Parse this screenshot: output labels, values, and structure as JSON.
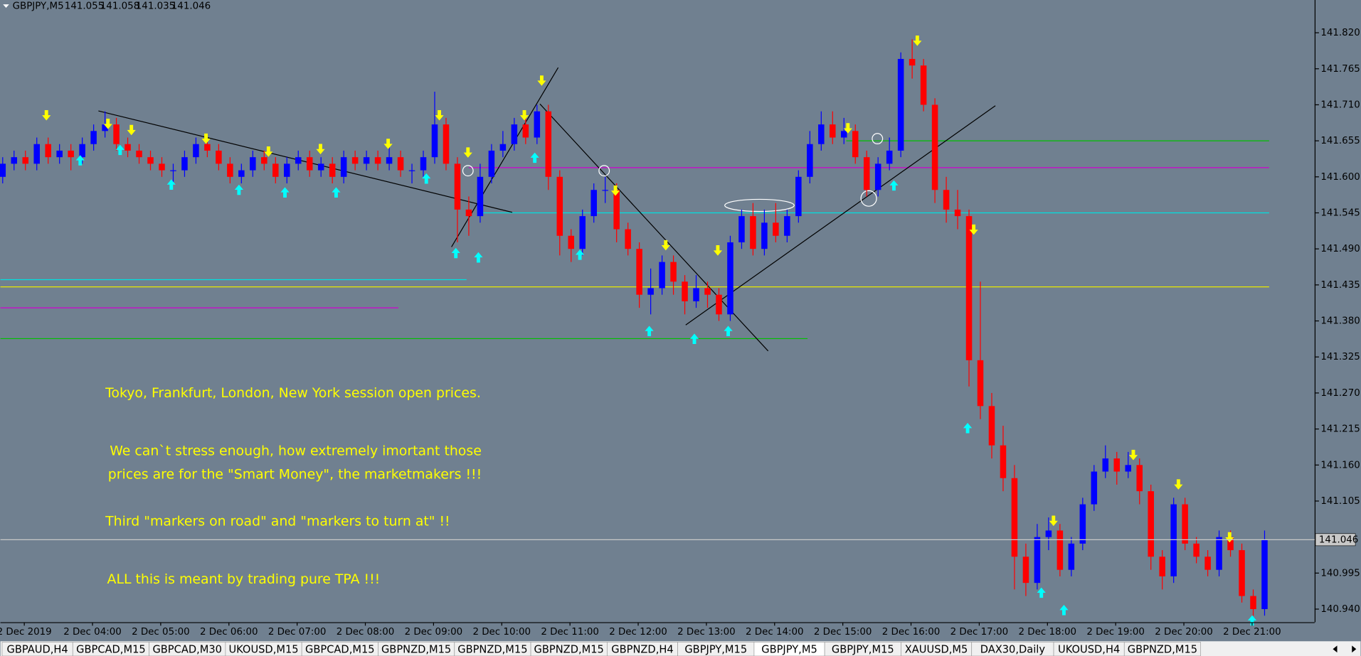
{
  "header": {
    "symbol": "GBPJPY,M5",
    "quote": [
      141.055,
      141.058,
      141.035,
      141.046
    ]
  },
  "chart_data": {
    "type": "candlestick",
    "up_color": "#0000ff",
    "down_color": "#ff0000",
    "open": [
      141.6,
      141.62,
      141.63,
      141.62,
      141.65,
      141.63,
      141.64,
      141.63,
      141.65,
      141.67,
      141.68,
      141.65,
      141.64,
      141.63,
      141.62,
      141.61,
      141.61,
      141.63,
      141.65,
      141.64,
      141.62,
      141.6,
      141.61,
      141.63,
      141.62,
      141.6,
      141.62,
      141.63,
      141.61,
      141.62,
      141.6,
      141.63,
      141.62,
      141.63,
      141.62,
      141.63,
      141.61,
      141.61,
      141.63,
      141.68,
      141.62,
      141.55,
      141.54,
      141.6,
      141.64,
      141.65,
      141.68,
      141.66,
      141.7,
      141.6,
      141.51,
      141.49,
      141.54,
      141.58,
      141.58,
      141.52,
      141.49,
      141.42,
      141.43,
      141.47,
      141.44,
      141.41,
      141.43,
      141.42,
      141.39,
      141.5,
      141.54,
      141.49,
      141.53,
      141.51,
      141.54,
      141.6,
      141.65,
      141.68,
      141.66,
      141.67,
      141.63,
      141.58,
      141.62,
      141.64,
      141.78,
      141.77,
      141.71,
      141.58,
      141.55,
      141.54,
      141.32,
      141.25,
      141.19,
      141.14,
      141.02,
      140.98,
      141.05,
      141.06,
      141.0,
      141.04,
      141.1,
      141.15,
      141.17,
      141.15,
      141.16,
      141.12,
      141.02,
      140.99,
      141.1,
      141.04,
      141.02,
      141.0,
      141.05,
      141.03,
      140.96,
      140.94
    ],
    "high": [
      141.63,
      141.64,
      141.64,
      141.66,
      141.66,
      141.65,
      141.65,
      141.66,
      141.68,
      141.7,
      141.69,
      141.66,
      141.65,
      141.64,
      141.63,
      141.62,
      141.64,
      141.66,
      141.66,
      141.65,
      141.63,
      141.62,
      141.64,
      141.64,
      141.63,
      141.63,
      141.64,
      141.64,
      141.63,
      141.63,
      141.64,
      141.64,
      141.64,
      141.64,
      141.65,
      141.64,
      141.62,
      141.64,
      141.73,
      141.69,
      141.63,
      141.57,
      141.62,
      141.65,
      141.67,
      141.69,
      141.7,
      141.71,
      141.71,
      141.61,
      141.52,
      141.55,
      141.59,
      141.6,
      141.59,
      141.53,
      141.5,
      141.46,
      141.48,
      141.48,
      141.45,
      141.45,
      141.44,
      141.43,
      141.51,
      141.55,
      141.56,
      141.55,
      141.56,
      141.55,
      141.61,
      141.67,
      141.7,
      141.7,
      141.69,
      141.68,
      141.64,
      141.63,
      141.66,
      141.79,
      141.81,
      141.78,
      141.72,
      141.6,
      141.58,
      141.55,
      141.44,
      141.27,
      141.22,
      141.16,
      141.04,
      141.07,
      141.08,
      141.07,
      141.05,
      141.11,
      141.16,
      141.19,
      141.18,
      141.18,
      141.17,
      141.13,
      141.03,
      141.11,
      141.11,
      141.05,
      141.03,
      141.06,
      141.06,
      141.04,
      140.97,
      141.06
    ],
    "low": [
      141.59,
      141.61,
      141.61,
      141.61,
      141.62,
      141.62,
      141.61,
      141.62,
      141.64,
      141.66,
      141.64,
      141.63,
      141.62,
      141.61,
      141.6,
      141.59,
      141.6,
      141.62,
      141.63,
      141.61,
      141.59,
      141.59,
      141.6,
      141.61,
      141.59,
      141.59,
      141.61,
      141.6,
      141.6,
      141.59,
      141.59,
      141.61,
      141.61,
      141.61,
      141.61,
      141.6,
      141.59,
      141.6,
      141.62,
      141.61,
      141.5,
      141.51,
      141.53,
      141.59,
      141.63,
      141.64,
      141.65,
      141.65,
      141.58,
      141.48,
      141.47,
      141.48,
      141.53,
      141.56,
      141.5,
      141.48,
      141.4,
      141.39,
      141.42,
      141.42,
      141.39,
      141.4,
      141.4,
      141.38,
      141.38,
      141.49,
      141.48,
      141.48,
      141.5,
      141.5,
      141.53,
      141.59,
      141.64,
      141.65,
      141.65,
      141.62,
      141.57,
      141.57,
      141.61,
      141.63,
      141.75,
      141.7,
      141.56,
      141.53,
      141.52,
      141.28,
      141.23,
      141.17,
      141.12,
      140.97,
      140.96,
      140.97,
      141.03,
      140.99,
      140.99,
      141.03,
      141.09,
      141.14,
      141.13,
      141.14,
      141.1,
      141.0,
      140.97,
      140.98,
      141.03,
      141.01,
      140.99,
      140.99,
      141.02,
      140.95,
      140.93,
      140.93
    ],
    "close": [
      141.62,
      141.63,
      141.62,
      141.65,
      141.63,
      141.64,
      141.63,
      141.65,
      141.67,
      141.68,
      141.65,
      141.64,
      141.63,
      141.62,
      141.61,
      141.61,
      141.63,
      141.65,
      141.64,
      141.62,
      141.6,
      141.61,
      141.63,
      141.62,
      141.6,
      141.62,
      141.63,
      141.61,
      141.62,
      141.6,
      141.63,
      141.62,
      141.63,
      141.62,
      141.63,
      141.61,
      141.61,
      141.63,
      141.68,
      141.62,
      141.55,
      141.54,
      141.6,
      141.64,
      141.65,
      141.68,
      141.66,
      141.7,
      141.6,
      141.51,
      141.49,
      141.54,
      141.58,
      141.58,
      141.52,
      141.49,
      141.42,
      141.43,
      141.47,
      141.44,
      141.41,
      141.43,
      141.42,
      141.39,
      141.5,
      141.54,
      141.49,
      141.53,
      141.51,
      141.54,
      141.6,
      141.65,
      141.68,
      141.66,
      141.67,
      141.63,
      141.58,
      141.62,
      141.64,
      141.78,
      141.77,
      141.71,
      141.58,
      141.55,
      141.54,
      141.32,
      141.25,
      141.19,
      141.14,
      141.02,
      140.98,
      141.05,
      141.06,
      141.0,
      141.04,
      141.1,
      141.15,
      141.17,
      141.15,
      141.16,
      141.12,
      141.02,
      140.99,
      141.1,
      141.04,
      141.02,
      141.0,
      141.05,
      141.03,
      140.96,
      140.94,
      141.046
    ],
    "xlim": [
      -0.2,
      115.4
    ],
    "ylim": [
      140.92,
      141.87
    ],
    "xticks": [
      {
        "value": 1.9,
        "label": "2 Dec 2019"
      },
      {
        "value": 7.9,
        "label": "2 Dec 04:00"
      },
      {
        "value": 13.9,
        "label": "2 Dec 05:00"
      },
      {
        "value": 19.9,
        "label": "2 Dec 06:00"
      },
      {
        "value": 25.9,
        "label": "2 Dec 07:00"
      },
      {
        "value": 31.9,
        "label": "2 Dec 08:00"
      },
      {
        "value": 37.9,
        "label": "2 Dec 09:00"
      },
      {
        "value": 43.9,
        "label": "2 Dec 10:00"
      },
      {
        "value": 49.9,
        "label": "2 Dec 11:00"
      },
      {
        "value": 55.9,
        "label": "2 Dec 12:00"
      },
      {
        "value": 61.9,
        "label": "2 Dec 13:00"
      },
      {
        "value": 67.9,
        "label": "2 Dec 14:00"
      },
      {
        "value": 73.9,
        "label": "2 Dec 15:00"
      },
      {
        "value": 79.9,
        "label": "2 Dec 16:00"
      },
      {
        "value": 85.9,
        "label": "2 Dec 17:00"
      },
      {
        "value": 91.9,
        "label": "2 Dec 18:00"
      },
      {
        "value": 97.9,
        "label": "2 Dec 19:00"
      },
      {
        "value": 103.9,
        "label": "2 Dec 20:00"
      },
      {
        "value": 109.9,
        "label": "2 Dec 21:00"
      }
    ],
    "yticks": [
      {
        "value": 141.82,
        "label": "141.820"
      },
      141.765,
      {
        "value": 141.71,
        "label": "141.710"
      },
      141.655,
      {
        "value": 141.6,
        "label": "141.600"
      },
      141.545,
      {
        "value": 141.49,
        "label": "141.490"
      },
      141.435,
      {
        "value": 141.38,
        "label": "141.380"
      },
      141.325,
      {
        "value": 141.27,
        "label": "141.270"
      },
      141.215,
      {
        "value": 141.16,
        "label": "141.160"
      },
      141.105,
      140.995,
      {
        "value": 140.94,
        "label": "140.940"
      }
    ],
    "last_price": 141.046,
    "levels": [
      {
        "value": 141.655,
        "color": "#00c000",
        "x": [
          74.2,
          111.4
        ]
      },
      {
        "value": 141.614,
        "color": "#d000d0",
        "x": [
          41.0,
          111.4
        ]
      },
      {
        "value": 141.545,
        "color": "#00e0e0",
        "x": [
          42.2,
          111.4
        ]
      },
      {
        "value": 141.432,
        "color": "#e8e800",
        "x": [
          -0.2,
          111.4
        ]
      },
      {
        "value": 141.443,
        "color": "#00e0e0",
        "x": [
          -0.2,
          40.8
        ]
      },
      {
        "value": 141.4,
        "color": "#d000d0",
        "x": [
          -0.2,
          34.8
        ]
      },
      {
        "value": 141.353,
        "color": "#00c000",
        "x": [
          -0.2,
          70.8
        ]
      }
    ],
    "annotations": [
      "Tokyo, Frankfurt, London, New York session open prices.",
      "We can`t stress enough, how extremely imortant those",
      "prices are for the \"Smart Money\", the marketmakers !!!",
      "Third \"markers on road\" and \"markers to turn at\" !!",
      "ALL this is meant by trading pure TPA !!!"
    ]
  },
  "tabs": [
    "GBPAUD,H4",
    "GBPCAD,M15",
    "GBPCAD,M30",
    "UKOUSD,M15",
    "GBPCAD,M15",
    "GBPNZD,M15",
    "GBPNZD,M15",
    "GBPNZD,M15",
    "GBPNZD,H4",
    "GBPJPY,M15",
    "GBPJPY,M5",
    "GBPJPY,M15",
    "XAUUSD,M5",
    "DAX30,Daily",
    "UKOUSD,H4",
    "GBPNZD,M15"
  ],
  "active_tab": 10
}
